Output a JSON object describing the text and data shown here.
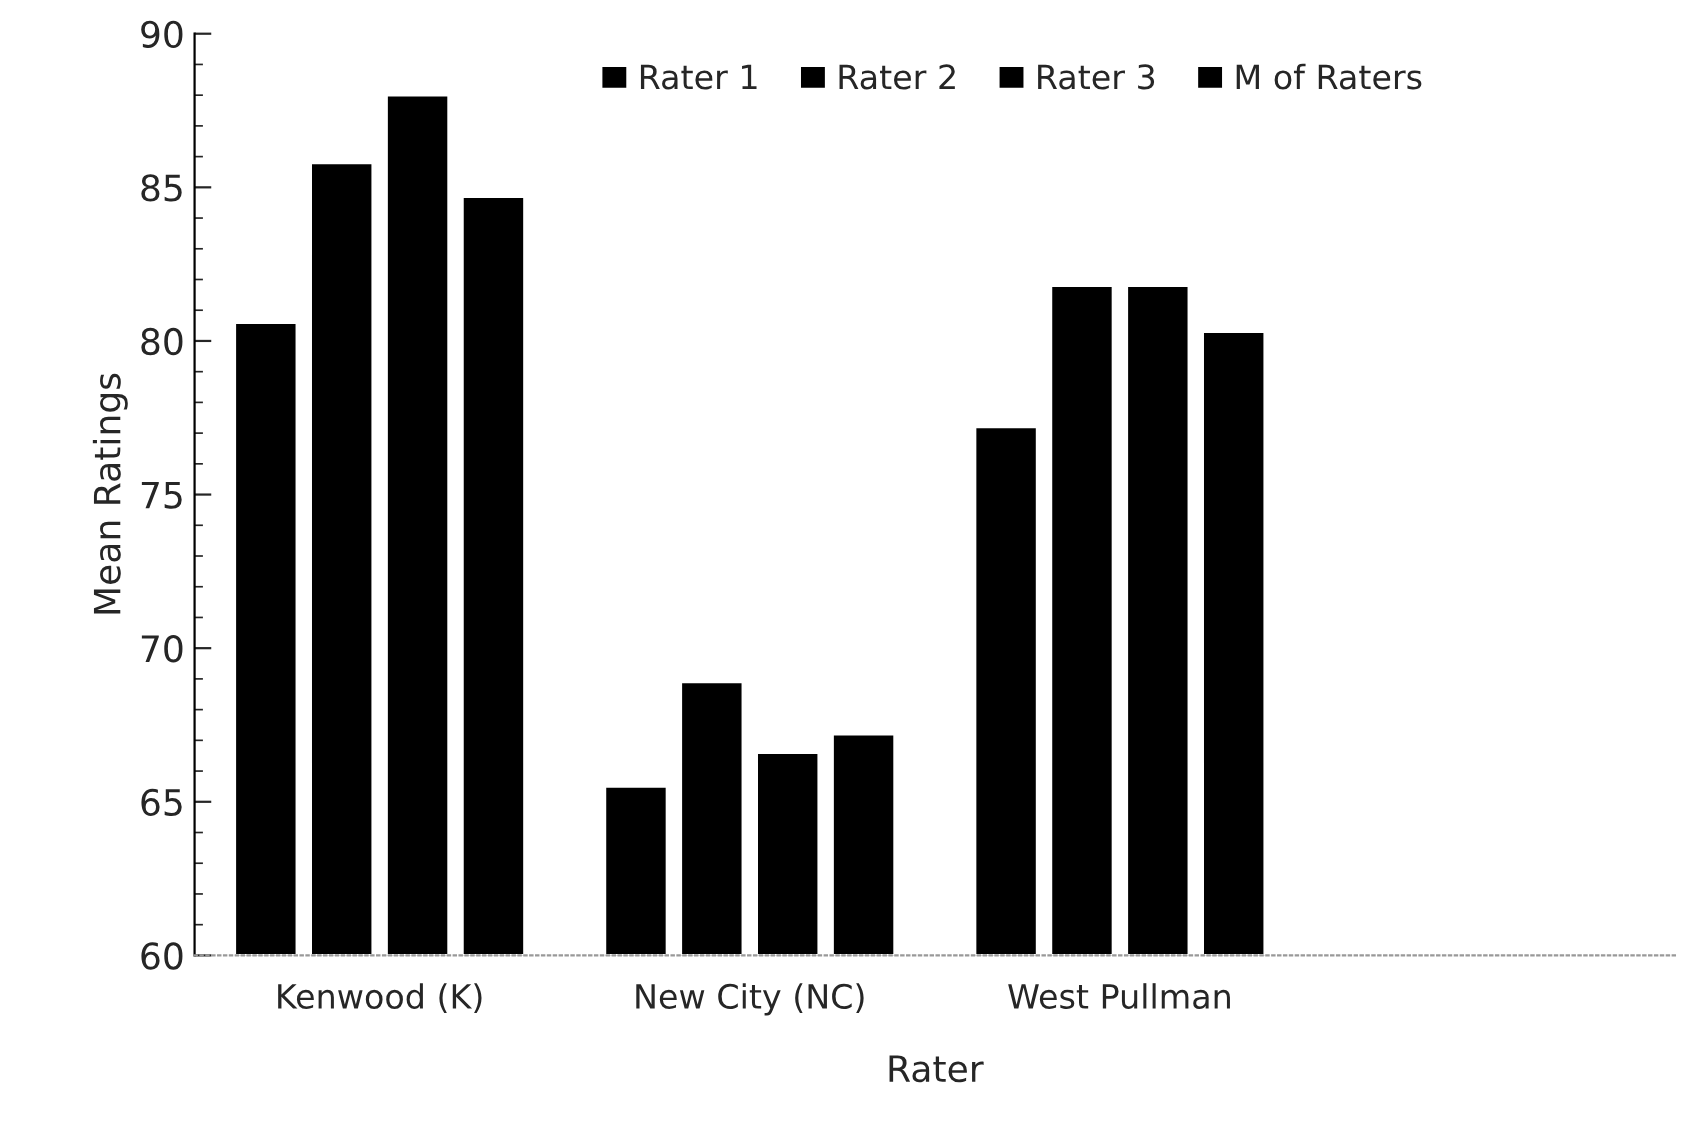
{
  "chart_data": {
    "type": "bar",
    "xlabel": "Rater",
    "ylabel": "Mean Ratings",
    "categories": [
      "Kenwood (K)",
      "New City (NC)",
      "West Pullman",
      null
    ],
    "series": [
      {
        "name": "Rater 1",
        "color": "#000000",
        "values": [
          80.6,
          65.5,
          77.2,
          null
        ]
      },
      {
        "name": "Rater 2",
        "color": "#000000",
        "values": [
          85.8,
          68.9,
          81.8,
          null
        ]
      },
      {
        "name": "Rater 3",
        "color": "#000000",
        "values": [
          88.0,
          66.6,
          81.8,
          null
        ]
      },
      {
        "name": "M of Raters",
        "color": "#000000",
        "values": [
          84.7,
          67.2,
          80.3,
          null
        ]
      }
    ],
    "ylim": [
      60,
      90
    ],
    "yticks": [
      60,
      65,
      70,
      75,
      80,
      85,
      90
    ],
    "grid": false,
    "legend": "top right"
  }
}
